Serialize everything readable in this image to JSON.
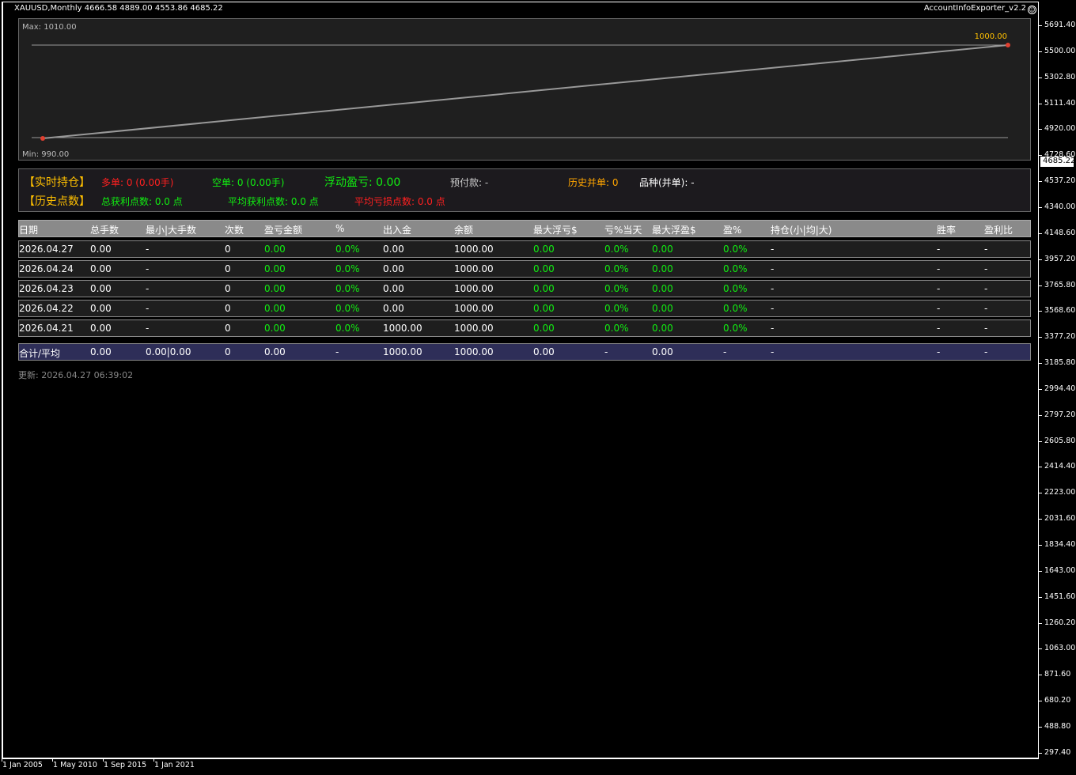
{
  "header": {
    "symbol_info": "XAUUSD,Monthly  4666.58 4889.00 4553.86 4685.22",
    "ea_name": "AccountInfoExporter_v2.2",
    "ea_icon": "smiley-icon"
  },
  "equity": {
    "max_label": "Max: 1010.00",
    "min_label": "Min: 990.00",
    "last_value": "1000.00"
  },
  "info": {
    "realtime": "【实时持仓】",
    "long": "多单: 0 (0.00手)",
    "short": "空单: 0 (0.00手)",
    "floating": "浮动盈亏: 0.00",
    "prepaid": "预付款: -",
    "hist_merged": "历史并单: 0",
    "symbol_merged": "品种(并单): -",
    "history": "【历史点数】",
    "total_profit_pts": "总获利点数: 0.0 点",
    "avg_profit_pts": "平均获利点数: 0.0 点",
    "avg_loss_pts": "平均亏损点数: 0.0 点"
  },
  "colors": {
    "green": "#11ee11",
    "red": "#ff2020",
    "gold": "#ffc000",
    "orange": "#ffa500"
  },
  "table": {
    "columns": [
      "日期",
      "总手数",
      "最小|大手数",
      "次数",
      "盈亏金额",
      "%",
      "出入金",
      "余额",
      "最大浮亏$",
      "亏%当天",
      "最大浮盈$",
      "盈%",
      "持仓(小|均|大)",
      "胜率",
      "盈利比"
    ],
    "rows": [
      [
        "2026.04.27",
        "0.00",
        "-",
        "0",
        "0.00",
        "0.0%",
        "0.00",
        "1000.00",
        "0.00",
        "0.0%",
        "0.00",
        "0.0%",
        "-",
        "-",
        "-"
      ],
      [
        "2026.04.24",
        "0.00",
        "-",
        "0",
        "0.00",
        "0.0%",
        "0.00",
        "1000.00",
        "0.00",
        "0.0%",
        "0.00",
        "0.0%",
        "-",
        "-",
        "-"
      ],
      [
        "2026.04.23",
        "0.00",
        "-",
        "0",
        "0.00",
        "0.0%",
        "0.00",
        "1000.00",
        "0.00",
        "0.0%",
        "0.00",
        "0.0%",
        "-",
        "-",
        "-"
      ],
      [
        "2026.04.22",
        "0.00",
        "-",
        "0",
        "0.00",
        "0.0%",
        "0.00",
        "1000.00",
        "0.00",
        "0.0%",
        "0.00",
        "0.0%",
        "-",
        "-",
        "-"
      ],
      [
        "2026.04.21",
        "0.00",
        "-",
        "0",
        "0.00",
        "0.0%",
        "1000.00",
        "1000.00",
        "0.00",
        "0.0%",
        "0.00",
        "0.0%",
        "-",
        "-",
        "-"
      ]
    ],
    "total": [
      "合计/平均",
      "0.00",
      "0.00|0.00",
      "0",
      "0.00",
      "-",
      "1000.00",
      "1000.00",
      "0.00",
      "-",
      "0.00",
      "-",
      "-",
      "-",
      "-"
    ]
  },
  "updated": "更新: 2026.04.27 06:39:02",
  "price_axis": [
    "5691.40",
    "5500.00",
    "5302.80",
    "5111.40",
    "4920.00",
    "4728.60",
    "4537.20",
    "4340.00",
    "4148.60",
    "3957.20",
    "3765.80",
    "3568.60",
    "3377.20",
    "3185.80",
    "2994.40",
    "2797.20",
    "2605.80",
    "2414.40",
    "2223.00",
    "2031.60",
    "1834.40",
    "1643.00",
    "1451.60",
    "1260.20",
    "1063.00",
    "871.60",
    "680.20",
    "488.80",
    "297.40"
  ],
  "current_price": "4685.22",
  "time_axis": [
    "1 Jan 2005",
    "1 May 2010",
    "1 Sep 2015",
    "1 Jan 2021"
  ]
}
